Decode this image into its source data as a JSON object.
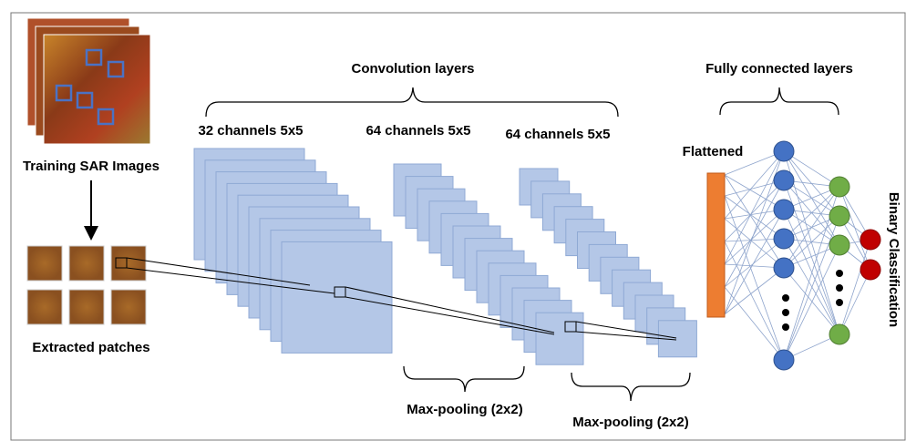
{
  "groups": {
    "convolution": "Convolution layers",
    "fully_connected": "Fully connected layers"
  },
  "layers": [
    {
      "label": "32 channels 5x5"
    },
    {
      "label": "64 channels 5x5"
    },
    {
      "label": "64 channels 5x5"
    }
  ],
  "pooling": [
    "Max-pooling (2x2)",
    "Max-pooling (2x2)"
  ],
  "input": {
    "images": "Training SAR Images",
    "patches": "Extracted patches"
  },
  "flattened": "Flattened",
  "output": "Binary Classification"
}
